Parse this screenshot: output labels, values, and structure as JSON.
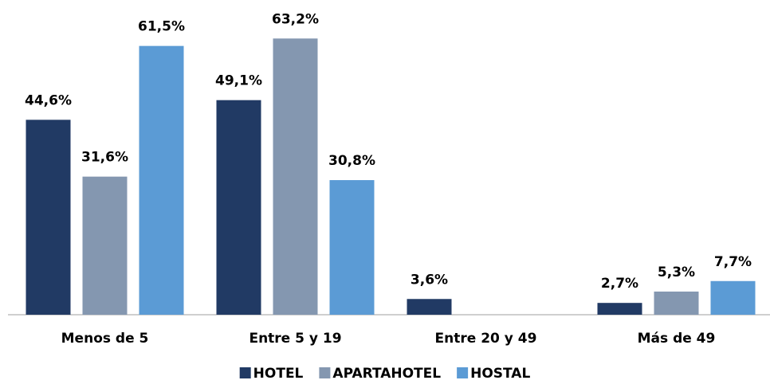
{
  "chart_data": {
    "type": "bar",
    "categories": [
      "Menos de 5",
      "Entre 5 y 19",
      "Entre 20 y 49",
      "Más de 49"
    ],
    "series": [
      {
        "name": "HOTEL",
        "color": "#213a64",
        "values": [
          44.6,
          49.1,
          3.6,
          2.7
        ],
        "value_labels": [
          "44,6%",
          "49,1%",
          "3,6%",
          "2,7%"
        ]
      },
      {
        "name": "APARTAHOTEL",
        "color": "#8497b0",
        "values": [
          31.6,
          63.2,
          null,
          5.3
        ],
        "value_labels": [
          "31,6%",
          "63,2%",
          null,
          "5,3%"
        ]
      },
      {
        "name": "HOSTAL",
        "color": "#5b9bd5",
        "values": [
          61.5,
          30.8,
          null,
          7.7
        ],
        "value_labels": [
          "61,5%",
          "30,8%",
          null,
          "7,7%"
        ]
      }
    ],
    "ylim": [
      0,
      68
    ],
    "legend": "bottom"
  }
}
